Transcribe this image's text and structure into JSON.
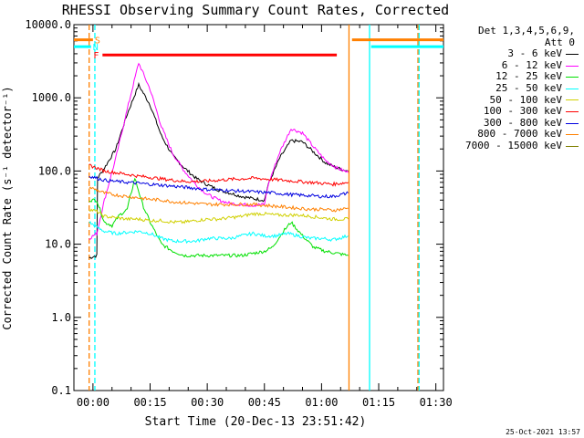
{
  "chart_data": {
    "type": "line",
    "title": "RHESSI Observing Summary Count Rates, Corrected",
    "xlabel": "Start Time (20-Dec-13 23:51:42)",
    "ylabel": "Corrected Count Rate (s⁻¹ detector⁻¹)",
    "y_scale": "log",
    "ylim": [
      0.1,
      10000
    ],
    "xlim_minutes": [
      -5,
      92
    ],
    "x_ticks": [
      {
        "t": 0,
        "label": "00:00"
      },
      {
        "t": 15,
        "label": "00:15"
      },
      {
        "t": 30,
        "label": "00:30"
      },
      {
        "t": 45,
        "label": "00:45"
      },
      {
        "t": 60,
        "label": "01:00"
      },
      {
        "t": 75,
        "label": "01:15"
      },
      {
        "t": 90,
        "label": "01:30"
      }
    ],
    "y_ticks": [
      {
        "v": 0.1,
        "label": "0.1"
      },
      {
        "v": 1,
        "label": "1.0"
      },
      {
        "v": 10,
        "label": "10.0"
      },
      {
        "v": 100,
        "label": "100.0"
      },
      {
        "v": 1000,
        "label": "1000.0"
      },
      {
        "v": 10000,
        "label": "10000.0"
      }
    ],
    "legend": {
      "placement": "right",
      "header_line1": "Det 1,3,4,5,6,9,",
      "header_line2": "Att 0"
    },
    "series": [
      {
        "name": "3 - 6 keV",
        "color": "#000000",
        "t": [
          -1,
          1,
          1.2,
          3,
          6,
          9,
          12,
          15,
          18,
          21,
          24,
          27,
          30,
          33,
          36,
          39,
          42,
          45,
          46,
          49,
          52,
          55,
          58,
          61,
          64,
          67
        ],
        "v": [
          6.5,
          7,
          80,
          110,
          200,
          600,
          1500,
          800,
          300,
          160,
          110,
          80,
          65,
          55,
          50,
          45,
          42,
          40,
          65,
          150,
          260,
          250,
          180,
          130,
          110,
          100
        ]
      },
      {
        "name": "6 - 12 keV",
        "color": "#ff00ff",
        "t": [
          -1,
          1,
          3,
          6,
          9,
          12,
          15,
          18,
          21,
          24,
          27,
          30,
          33,
          36,
          39,
          42,
          45,
          46,
          49,
          52,
          55,
          58,
          61,
          64,
          67
        ],
        "v": [
          12,
          14,
          40,
          150,
          700,
          3000,
          1300,
          400,
          170,
          100,
          65,
          48,
          40,
          36,
          35,
          34,
          35,
          65,
          180,
          380,
          330,
          210,
          140,
          110,
          95
        ]
      },
      {
        "name": "12 - 25 keV",
        "color": "#00e000",
        "t": [
          -1,
          1,
          3,
          5,
          7,
          9,
          11,
          13,
          15,
          18,
          21,
          24,
          27,
          30,
          33,
          36,
          39,
          42,
          45,
          47,
          50,
          52,
          55,
          58,
          61,
          64,
          67
        ],
        "v": [
          40,
          40,
          20,
          18,
          25,
          30,
          80,
          35,
          20,
          10,
          8,
          7,
          7,
          7,
          7,
          7,
          7,
          7.5,
          8,
          9,
          15,
          20,
          13,
          9,
          8,
          7.5,
          7
        ]
      },
      {
        "name": "25 - 50 keV",
        "color": "#00ffff",
        "t": [
          -1,
          1,
          3,
          6,
          9,
          12,
          15,
          18,
          21,
          24,
          27,
          30,
          33,
          36,
          39,
          42,
          45,
          48,
          51,
          54,
          57,
          60,
          63,
          67
        ],
        "v": [
          20,
          17,
          15,
          14,
          14.5,
          15,
          14,
          12,
          11,
          11,
          11,
          12,
          12,
          12,
          13,
          14,
          13,
          13,
          14,
          13,
          12,
          12,
          11.5,
          13
        ]
      },
      {
        "name": "50 - 100 keV",
        "color": "#d0d000",
        "t": [
          -1,
          1,
          3,
          6,
          9,
          12,
          15,
          18,
          21,
          24,
          27,
          30,
          33,
          36,
          39,
          42,
          45,
          48,
          51,
          54,
          57,
          60,
          63,
          67
        ],
        "v": [
          30,
          28,
          24,
          23,
          22,
          22,
          21,
          21,
          20,
          20,
          21,
          22,
          22,
          23,
          24,
          26,
          26,
          25,
          25,
          25,
          24,
          23,
          22,
          22
        ]
      },
      {
        "name": "100 - 300 keV",
        "color": "#ff0000",
        "t": [
          -1,
          1,
          3,
          6,
          9,
          12,
          15,
          18,
          21,
          24,
          27,
          30,
          33,
          36,
          39,
          42,
          45,
          48,
          51,
          54,
          57,
          60,
          63,
          67
        ],
        "v": [
          120,
          110,
          100,
          95,
          90,
          85,
          82,
          78,
          75,
          72,
          72,
          73,
          75,
          77,
          78,
          80,
          78,
          76,
          74,
          72,
          70,
          68,
          66,
          70
        ]
      },
      {
        "name": "300 - 800 keV",
        "color": "#0000e0",
        "t": [
          -1,
          1,
          3,
          6,
          9,
          12,
          15,
          18,
          21,
          24,
          27,
          30,
          33,
          36,
          39,
          42,
          45,
          48,
          51,
          54,
          57,
          60,
          63,
          67
        ],
        "v": [
          85,
          80,
          75,
          72,
          70,
          68,
          66,
          64,
          62,
          60,
          58,
          56,
          55,
          54,
          53,
          52,
          51,
          50,
          48,
          47,
          46,
          45,
          45,
          50
        ]
      },
      {
        "name": "800 - 7000 keV",
        "color": "#ff8000",
        "t": [
          -1,
          1,
          3,
          6,
          9,
          12,
          15,
          18,
          21,
          24,
          27,
          30,
          33,
          36,
          39,
          42,
          45,
          48,
          51,
          54,
          57,
          60,
          63,
          67
        ],
        "v": [
          60,
          55,
          50,
          47,
          45,
          43,
          41,
          40,
          38,
          37,
          36,
          35,
          35,
          35,
          35,
          35,
          34,
          33,
          32,
          31,
          30,
          30,
          29,
          31
        ]
      },
      {
        "name": "7000 - 15000 keV",
        "color": "#808000",
        "t": [],
        "v": []
      }
    ],
    "vertical_lines": [
      {
        "t": -1,
        "color": "#ff8000",
        "dash": true
      },
      {
        "t": 0.5,
        "color": "#00ffff",
        "dash": true
      },
      {
        "t": 67.2,
        "color": "#ff8000",
        "dash": false
      },
      {
        "t": 72.6,
        "color": "#00ffff",
        "dash": false
      },
      {
        "t": 85.3,
        "color": "#ff8000",
        "dash": true
      },
      {
        "t": 85.6,
        "color": "#00ffff",
        "dash": true
      }
    ],
    "flag_bars": [
      {
        "label": "S",
        "color": "#ff8000",
        "segments": [
          [
            -5,
            0.0
          ],
          [
            68,
            92
          ]
        ],
        "level": 6200
      },
      {
        "label": "N",
        "color": "#00ffff",
        "segments": [
          [
            -5,
            -0.5
          ],
          [
            73,
            92
          ]
        ],
        "level": 5000
      },
      {
        "label": "F",
        "color": "#ff0000",
        "segments": [
          [
            2.5,
            64.0
          ]
        ],
        "level": 3850
      }
    ]
  },
  "footer": {
    "timestamp": "25-Oct-2021 13:57"
  }
}
